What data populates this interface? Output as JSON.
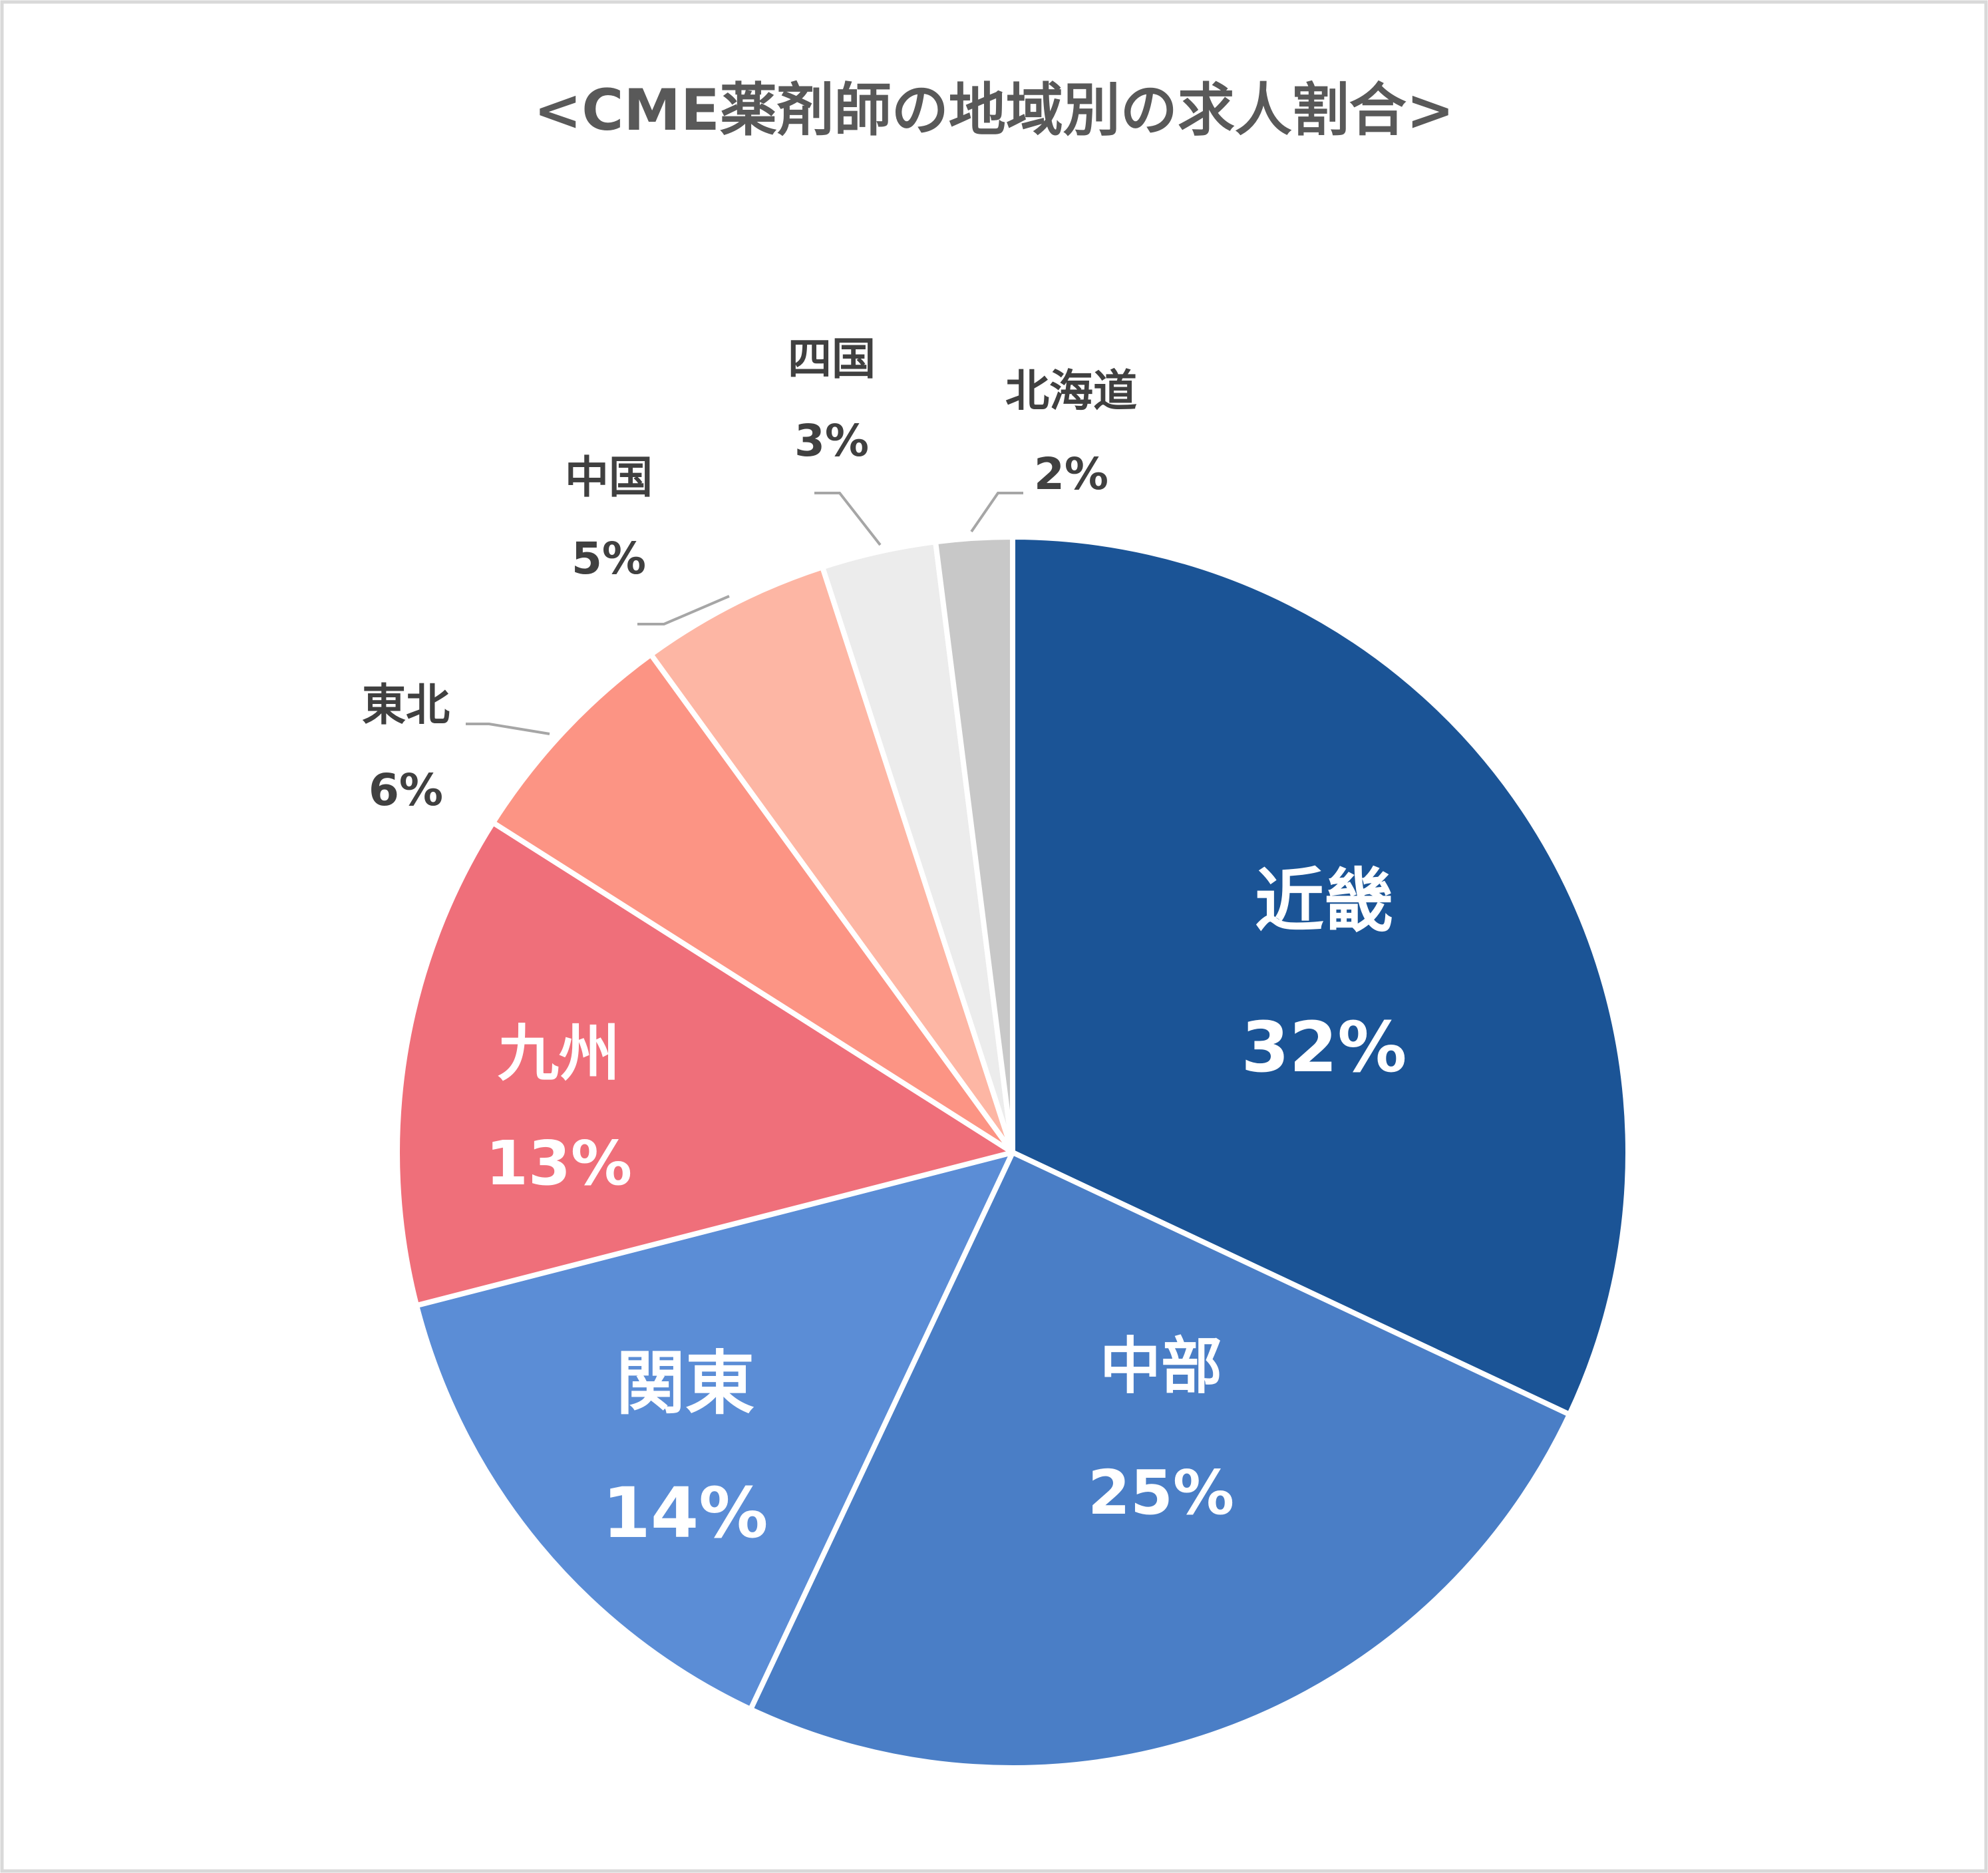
{
  "chart_data": {
    "type": "pie",
    "title": "<CME薬剤師の地域別の求人割合>",
    "slices": [
      {
        "label": "近畿",
        "value": 32,
        "value_label": "32%",
        "color": "#1b5496",
        "label_color": "#ffffff",
        "placement": "inside"
      },
      {
        "label": "中部",
        "value": 25,
        "value_label": "25%",
        "color": "#4a7ec6",
        "label_color": "#ffffff",
        "placement": "inside"
      },
      {
        "label": "関東",
        "value": 14,
        "value_label": "14%",
        "color": "#5b8dd6",
        "label_color": "#ffffff",
        "placement": "inside"
      },
      {
        "label": "九州",
        "value": 13,
        "value_label": "13%",
        "color": "#ef6f7a",
        "label_color": "#ffffff",
        "placement": "inside"
      },
      {
        "label": "東北",
        "value": 6,
        "value_label": "6%",
        "color": "#fc9484",
        "label_color": "#404040",
        "placement": "outside"
      },
      {
        "label": "中国",
        "value": 5,
        "value_label": "5%",
        "color": "#fdb6a4",
        "label_color": "#404040",
        "placement": "outside"
      },
      {
        "label": "四国",
        "value": 3,
        "value_label": "3%",
        "color": "#ececec",
        "label_color": "#404040",
        "placement": "outside"
      },
      {
        "label": "北海道",
        "value": 2,
        "value_label": "2%",
        "color": "#c8c8c8",
        "label_color": "#404040",
        "placement": "outside"
      }
    ],
    "start": "12 o'clock",
    "direction": "clockwise",
    "legend": "none"
  }
}
